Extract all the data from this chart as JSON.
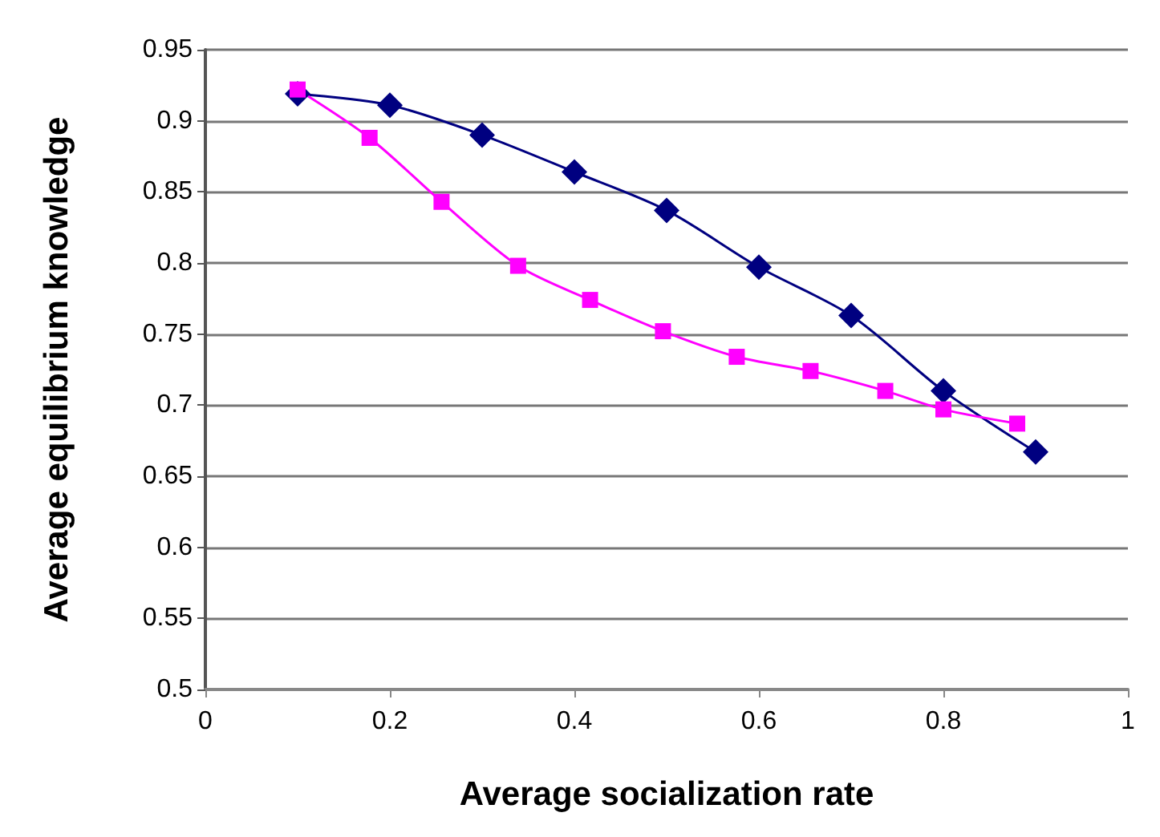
{
  "chart_data": {
    "type": "line",
    "xlabel": "Average socialization rate",
    "ylabel": "Average equilibrium knowledge",
    "xlim": [
      0,
      1
    ],
    "xticks": [
      0,
      0.2,
      0.4,
      0.6,
      0.8,
      1
    ],
    "ylim": [
      0.5,
      0.95
    ],
    "yticks": [
      0.5,
      0.55,
      0.6,
      0.65,
      0.7,
      0.75,
      0.8,
      0.85,
      0.9,
      0.95
    ],
    "grid": "y",
    "series": [
      {
        "color": "#000080",
        "marker": "diamond",
        "x": [
          0.1,
          0.2,
          0.3,
          0.4,
          0.5,
          0.6,
          0.7,
          0.8,
          0.9
        ],
        "values": [
          0.919,
          0.911,
          0.89,
          0.864,
          0.837,
          0.797,
          0.763,
          0.71,
          0.667
        ]
      },
      {
        "color": "#ff00ff",
        "marker": "square",
        "x": [
          0.1,
          0.178,
          0.256,
          0.339,
          0.417,
          0.496,
          0.576,
          0.656,
          0.737,
          0.8,
          0.88
        ],
        "values": [
          0.922,
          0.888,
          0.843,
          0.798,
          0.774,
          0.752,
          0.734,
          0.724,
          0.71,
          0.697,
          0.687
        ]
      }
    ]
  }
}
